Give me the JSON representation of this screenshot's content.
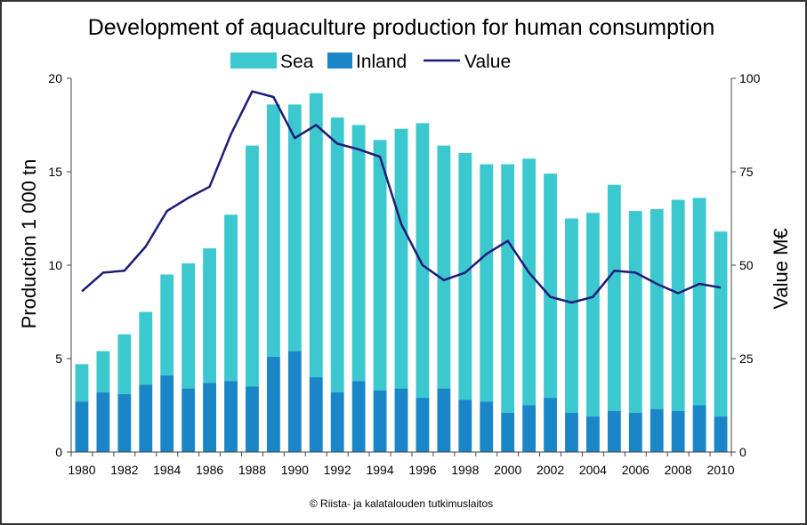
{
  "chart_data": {
    "type": "bar",
    "title": "Development of aquaculture production for human consumption",
    "ylabel": "Production 1 000 tn",
    "y2label": "Value M€",
    "ylim": [
      0,
      20
    ],
    "y2lim": [
      0,
      100
    ],
    "yticks": [
      "0",
      "5",
      "10",
      "15",
      "20"
    ],
    "y2ticks": [
      "0",
      "25",
      "50",
      "75",
      "100"
    ],
    "stacked": true,
    "grid": false,
    "legend_position": "top",
    "credit": "© Riista- ja kalatalouden tutkimuslaitos",
    "x": [
      1980,
      1981,
      1982,
      1983,
      1984,
      1985,
      1986,
      1987,
      1988,
      1989,
      1990,
      1991,
      1992,
      1993,
      1994,
      1995,
      1996,
      1997,
      1998,
      1999,
      2000,
      2001,
      2002,
      2003,
      2004,
      2005,
      2006,
      2007,
      2008,
      2009,
      2010
    ],
    "xtick_labels": [
      "1980",
      "1982",
      "1984",
      "1986",
      "1988",
      "1990",
      "1992",
      "1994",
      "1996",
      "1998",
      "2000",
      "2002",
      "2004",
      "2006",
      "2008",
      "2010"
    ],
    "series": [
      {
        "name": "Inland",
        "kind": "bar",
        "axis": "left",
        "color": "#1a86c8",
        "values": [
          2.7,
          3.2,
          3.1,
          3.6,
          4.1,
          3.4,
          3.7,
          3.8,
          3.5,
          5.1,
          5.4,
          4.0,
          3.2,
          3.8,
          3.3,
          3.4,
          2.9,
          3.4,
          2.8,
          2.7,
          2.1,
          2.5,
          2.9,
          2.1,
          1.9,
          2.2,
          2.1,
          2.3,
          2.2,
          2.5,
          1.9
        ]
      },
      {
        "name": "Sea",
        "kind": "bar",
        "axis": "left",
        "color": "#3cc8cf",
        "values": [
          2.0,
          2.2,
          3.2,
          3.9,
          5.4,
          6.7,
          7.2,
          8.9,
          12.9,
          13.5,
          13.2,
          15.2,
          14.7,
          13.7,
          13.4,
          13.9,
          14.7,
          13.0,
          13.2,
          12.7,
          13.3,
          13.2,
          12.0,
          10.4,
          10.9,
          12.1,
          10.8,
          10.7,
          11.3,
          11.1,
          9.9
        ]
      },
      {
        "name": "Value",
        "kind": "line",
        "axis": "right",
        "color": "#1c1c78",
        "values": [
          43,
          48,
          48.5,
          55,
          64.5,
          68,
          71,
          85,
          96.5,
          95,
          84,
          87.5,
          82.5,
          81,
          79,
          61,
          50,
          46,
          48,
          53,
          56.5,
          48,
          41.5,
          40,
          41.5,
          48.5,
          48,
          45,
          42.5,
          45,
          44
        ]
      }
    ]
  }
}
